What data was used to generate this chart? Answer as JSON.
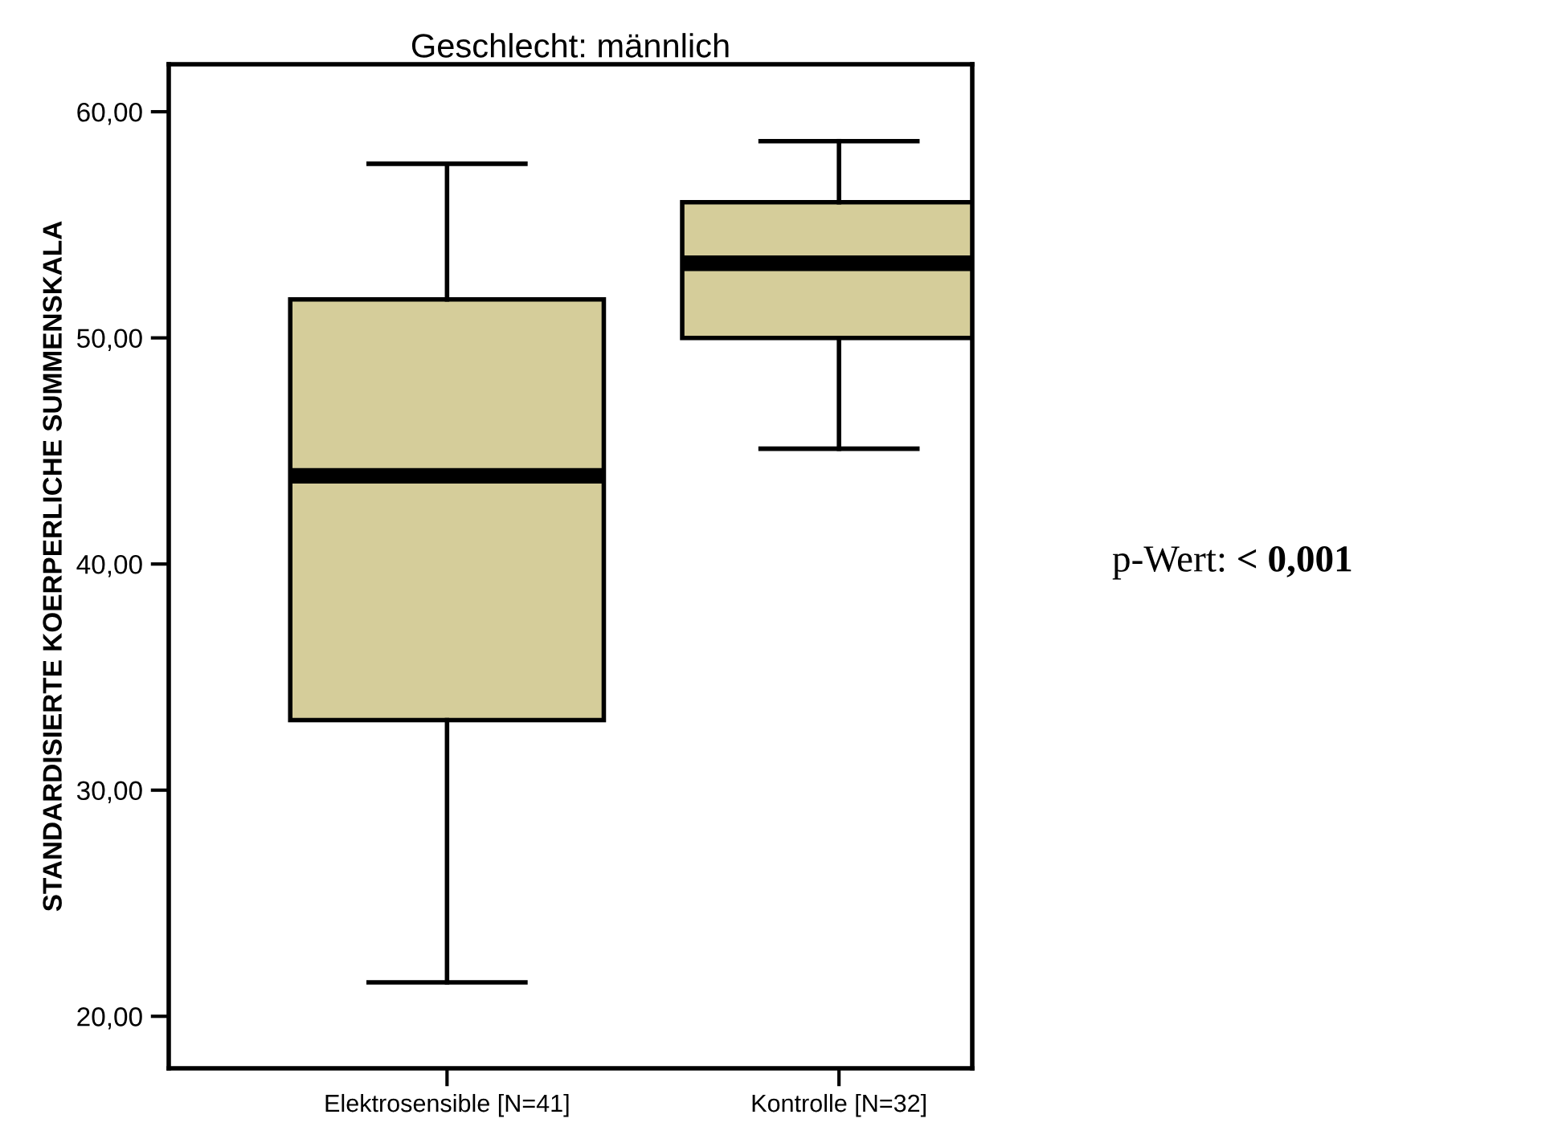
{
  "chart_data": {
    "type": "box",
    "title": "Geschlecht: männlich",
    "ylabel": "STANDARDISIERTE KOERPERLICHE SUMMENSKALA",
    "categories": [
      "Elektrosensible [N=41]",
      "Kontrolle [N=32]"
    ],
    "boxes": [
      {
        "low": 21.5,
        "q1": 33.1,
        "median": 43.9,
        "q3": 51.7,
        "high": 57.7
      },
      {
        "low": 45.1,
        "q1": 50.0,
        "median": 53.3,
        "q3": 56.0,
        "high": 58.7
      }
    ],
    "color": "#d5cd9a",
    "ylim": [
      17.7,
      62.1
    ],
    "yticks": [
      {
        "value": 20,
        "label": "20,00"
      },
      {
        "value": 30,
        "label": "30,00"
      },
      {
        "value": 40,
        "label": "40,00"
      },
      {
        "value": 50,
        "label": "50,00"
      },
      {
        "value": 60,
        "label": "60,00"
      }
    ],
    "grid": false,
    "annotations": [
      "p-Wert:",
      "< 0,001"
    ]
  }
}
